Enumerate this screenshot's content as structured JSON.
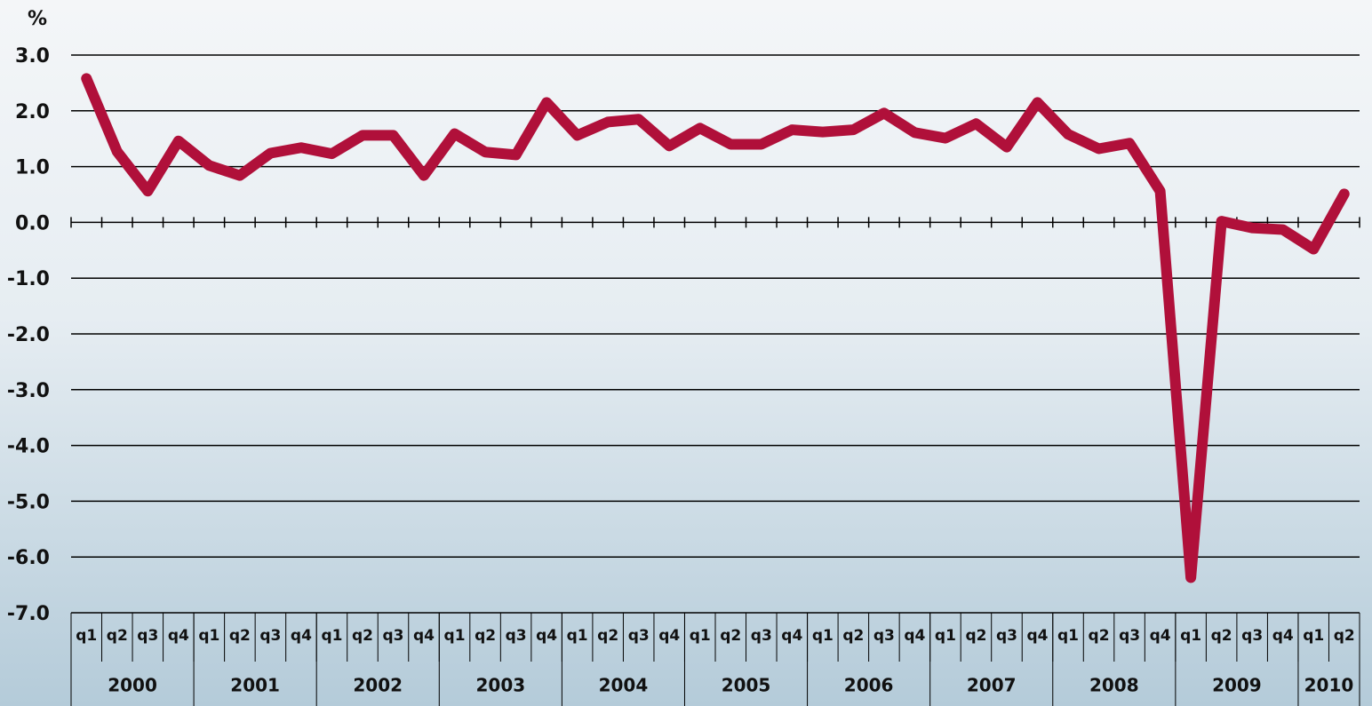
{
  "chart_data": {
    "type": "line",
    "y_unit": "%",
    "categories": [
      "q1",
      "q2",
      "q3",
      "q4",
      "q1",
      "q2",
      "q3",
      "q4",
      "q1",
      "q2",
      "q3",
      "q4",
      "q1",
      "q2",
      "q3",
      "q4",
      "q1",
      "q2",
      "q3",
      "q4",
      "q1",
      "q2",
      "q3",
      "q4",
      "q1",
      "q2",
      "q3",
      "q4",
      "q1",
      "q2",
      "q3",
      "q4",
      "q1",
      "q2",
      "q3",
      "q4",
      "q1",
      "q2",
      "q3",
      "q4",
      "q1",
      "q2"
    ],
    "groups": [
      {
        "label": "2000",
        "size": 4
      },
      {
        "label": "2001",
        "size": 4
      },
      {
        "label": "2002",
        "size": 4
      },
      {
        "label": "2003",
        "size": 4
      },
      {
        "label": "2004",
        "size": 4
      },
      {
        "label": "2005",
        "size": 4
      },
      {
        "label": "2006",
        "size": 4
      },
      {
        "label": "2007",
        "size": 4
      },
      {
        "label": "2008",
        "size": 4
      },
      {
        "label": "2009",
        "size": 4
      },
      {
        "label": "2010",
        "size": 2
      }
    ],
    "series": [
      {
        "color": "#b0103a",
        "values": [
          2.58,
          1.27,
          0.56,
          1.46,
          1.02,
          0.84,
          1.24,
          1.34,
          1.23,
          1.56,
          1.56,
          0.84,
          1.59,
          1.26,
          1.21,
          2.15,
          1.56,
          1.8,
          1.85,
          1.37,
          1.69,
          1.4,
          1.4,
          1.66,
          1.62,
          1.66,
          1.96,
          1.61,
          1.51,
          1.77,
          1.35,
          2.15,
          1.58,
          1.32,
          1.42,
          0.56,
          -6.37,
          0.02,
          -0.1,
          -0.13,
          -0.48,
          0.51
        ]
      }
    ],
    "ylim": [
      -7,
      3
    ],
    "yticks": [
      {
        "value": -7,
        "label": "-7.0"
      },
      {
        "value": -6,
        "label": "-6.0"
      },
      {
        "value": -5,
        "label": "-5.0"
      },
      {
        "value": -4,
        "label": "-4.0"
      },
      {
        "value": -3,
        "label": "-3.0"
      },
      {
        "value": -2,
        "label": "-2.0"
      },
      {
        "value": -1,
        "label": "-1.0"
      },
      {
        "value": 0,
        "label": "0.0"
      },
      {
        "value": 1,
        "label": "1.0"
      },
      {
        "value": 2,
        "label": "2.0"
      },
      {
        "value": 3,
        "label": "3.0"
      }
    ],
    "grid": true
  }
}
